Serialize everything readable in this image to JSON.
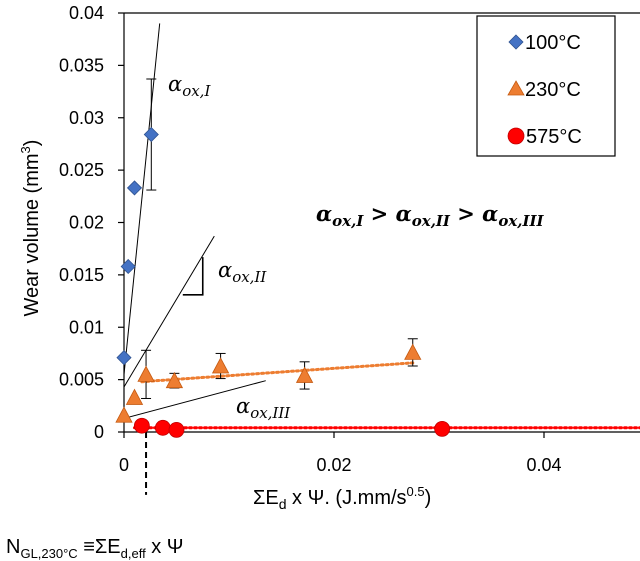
{
  "chart_data": {
    "type": "scatter",
    "title": "",
    "xlabel": "ΣEd x Ψ. (J.mm/s0.5)",
    "xlabel_parts": {
      "sigma_e": "ΣE",
      "sub_d": "d",
      "mid": " x  Ψ. (J.mm/s",
      "sup": "0.5",
      "end": ")"
    },
    "ylabel": "Wear volume (mm3)",
    "ylabel_parts": {
      "main": "Wear volume (mm",
      "sup": "3",
      "end": ")"
    },
    "xlim": [
      0,
      0.05
    ],
    "ylim": [
      0,
      0.04
    ],
    "x_ticks": [
      0,
      0.02,
      0.04
    ],
    "x_tick_labels": [
      "0",
      "0.02",
      "0.04"
    ],
    "y_ticks": [
      0,
      0.005,
      0.01,
      0.015,
      0.02,
      0.025,
      0.03,
      0.035,
      0.04
    ],
    "y_tick_labels": [
      "0",
      "0.005",
      "0.01",
      "0.015",
      "0.02",
      "0.025",
      "0.03",
      "0.035",
      "0.04"
    ],
    "grid": false,
    "legend_position": "top-right",
    "series": [
      {
        "name": "100°C",
        "marker": "diamond",
        "color": "#4472C4",
        "points": [
          {
            "x": 0.0,
            "y": 0.0071
          },
          {
            "x": 0.0004,
            "y": 0.0158
          },
          {
            "x": 0.001,
            "y": 0.0233
          },
          {
            "x": 0.0026,
            "y": 0.0284,
            "err": 0.0053
          }
        ]
      },
      {
        "name": "230°C",
        "marker": "triangle",
        "color": "#ED7D31",
        "trend": {
          "x": [
            0.0017,
            0.0275
          ],
          "y": [
            0.0048,
            0.0066
          ]
        },
        "points": [
          {
            "x": 0.0,
            "y": 0.0016
          },
          {
            "x": 0.001,
            "y": 0.0033
          },
          {
            "x": 0.0021,
            "y": 0.0055,
            "err": 0.0023
          },
          {
            "x": 0.0048,
            "y": 0.0049,
            "err": 0.0007
          },
          {
            "x": 0.0092,
            "y": 0.0063,
            "err": 0.0012
          },
          {
            "x": 0.0172,
            "y": 0.0054,
            "err": 0.0013
          },
          {
            "x": 0.0275,
            "y": 0.0076,
            "err": 0.0013
          }
        ]
      },
      {
        "name": "575°C",
        "marker": "circle",
        "color": "#FF0000",
        "trend": {
          "x": [
            0.001,
            0.05
          ],
          "y": [
            0.0004,
            0.0004
          ]
        },
        "points": [
          {
            "x": 0.0017,
            "y": 0.0006
          },
          {
            "x": 0.0037,
            "y": 0.0004
          },
          {
            "x": 0.005,
            "y": 0.0002
          },
          {
            "x": 0.0303,
            "y": 0.0003
          }
        ]
      }
    ],
    "slope_lines": [
      {
        "x": [
          0.0,
          0.0034
        ],
        "y": [
          0.0055,
          0.039
        ]
      },
      {
        "x": [
          0.0,
          0.0086
        ],
        "y": [
          0.0043,
          0.0187
        ]
      },
      {
        "x": [
          0.0,
          0.0135
        ],
        "y": [
          0.0013,
          0.0049
        ]
      }
    ],
    "slope_markers": [
      {
        "x": [
          0.0075,
          0.0075,
          0.0056
        ],
        "y": [
          0.0167,
          0.0131,
          0.0131
        ]
      }
    ],
    "vertical_dashed": {
      "x": 0.0021,
      "y": [
        0.0,
        -0.006
      ]
    },
    "annotations": {
      "alpha1": "αox,I",
      "alpha2": "αox,II",
      "alpha3": "αox,III",
      "relation": "αox,I > αox,II > αox,III"
    },
    "annotation_parts": {
      "alpha": "α",
      "sub1": "ox,I",
      "sub2": "ox,II",
      "sub3": "ox,III",
      "gt": " > "
    },
    "bottom_note": {
      "n": "N",
      "sub1": "GL,230°C",
      "equiv": " ≡ΣE",
      "sub2": "d,eff",
      "end": "  x  Ψ"
    }
  }
}
